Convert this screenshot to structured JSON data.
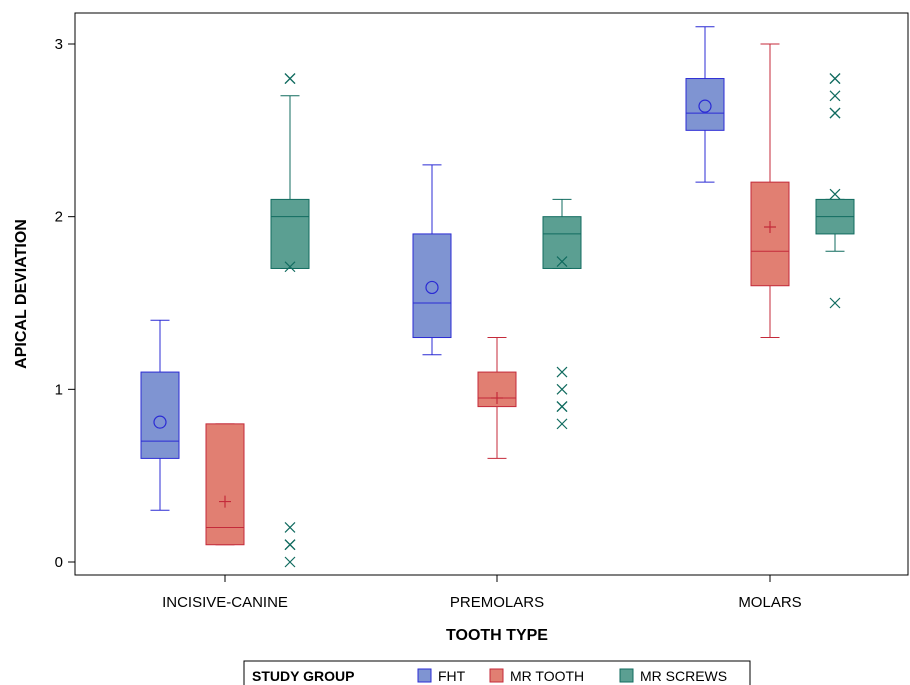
{
  "chart_data": {
    "type": "box",
    "xlabel": "TOOTH TYPE",
    "ylabel": "APICAL DEVIATION",
    "ylim": [
      -0.08,
      3.2
    ],
    "yticks": [
      0,
      1,
      2,
      3
    ],
    "categories": [
      "INCISIVE-CANINE",
      "PREMOLARS",
      "MOLARS"
    ],
    "legend": {
      "title": "STUDY GROUP",
      "position": "bottom",
      "entries": [
        "FHT",
        "MR TOOTH",
        "MR SCREWS"
      ]
    },
    "grid": false,
    "series": [
      {
        "name": "FHT",
        "fill": "#7f94d2",
        "stroke": "#2b2bd4",
        "mean_marker": "circle",
        "boxes": [
          {
            "category": "INCISIVE-CANINE",
            "min": 0.3,
            "q1": 0.6,
            "median": 0.7,
            "q3": 1.1,
            "max": 1.4,
            "mean": 0.81,
            "outliers": []
          },
          {
            "category": "PREMOLARS",
            "min": 1.2,
            "q1": 1.3,
            "median": 1.5,
            "q3": 1.9,
            "max": 2.3,
            "mean": 1.59,
            "outliers": []
          },
          {
            "category": "MOLARS",
            "min": 2.2,
            "q1": 2.5,
            "median": 2.6,
            "q3": 2.8,
            "max": 3.1,
            "mean": 2.64,
            "outliers": []
          }
        ]
      },
      {
        "name": "MR TOOTH",
        "fill": "#e17f72",
        "stroke": "#c42a3a",
        "mean_marker": "plus",
        "boxes": [
          {
            "category": "INCISIVE-CANINE",
            "min": 0.1,
            "q1": 0.1,
            "median": 0.2,
            "q3": 0.8,
            "max": 0.8,
            "mean": 0.35,
            "outliers": []
          },
          {
            "category": "PREMOLARS",
            "min": 0.6,
            "q1": 0.9,
            "median": 0.95,
            "q3": 1.1,
            "max": 1.3,
            "mean": 0.95,
            "outliers": []
          },
          {
            "category": "MOLARS",
            "min": 1.3,
            "q1": 1.6,
            "median": 1.8,
            "q3": 2.2,
            "max": 3.0,
            "mean": 1.94,
            "outliers": []
          }
        ]
      },
      {
        "name": "MR SCREWS",
        "fill": "#5b9f92",
        "stroke": "#116b5f",
        "mean_marker": "x",
        "boxes": [
          {
            "category": "INCISIVE-CANINE",
            "min": 1.7,
            "q1": 1.7,
            "median": 2.0,
            "q3": 2.1,
            "max": 2.7,
            "mean": 1.71,
            "outliers": [
              0.0,
              0.1,
              0.1,
              0.2,
              2.8,
              2.8
            ]
          },
          {
            "category": "PREMOLARS",
            "min": 1.7,
            "q1": 1.7,
            "median": 1.9,
            "q3": 2.0,
            "max": 2.1,
            "mean": 1.74,
            "outliers": [
              0.8,
              0.9,
              0.9,
              1.0,
              1.1
            ]
          },
          {
            "category": "MOLARS",
            "min": 1.8,
            "q1": 1.9,
            "median": 2.0,
            "q3": 2.1,
            "max": 2.1,
            "mean": 2.13,
            "outliers": [
              1.5,
              2.6,
              2.6,
              2.7,
              2.8,
              2.8
            ]
          }
        ]
      }
    ]
  }
}
